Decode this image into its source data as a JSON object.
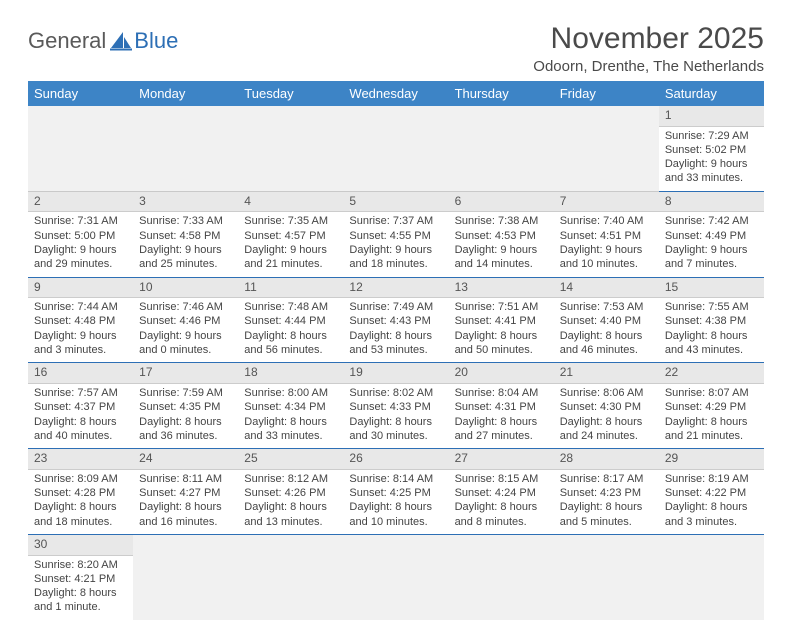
{
  "brand": {
    "part1": "General",
    "part2": "Blue"
  },
  "title": "November 2025",
  "location": "Odoorn, Drenthe, The Netherlands",
  "colors": {
    "header_bg": "#3d84c6",
    "header_text": "#ffffff",
    "rule": "#2d6fb5",
    "daynum_bg": "#e8e8e8",
    "empty_bg": "#f1f1f1",
    "text": "#444444"
  },
  "dayNames": [
    "Sunday",
    "Monday",
    "Tuesday",
    "Wednesday",
    "Thursday",
    "Friday",
    "Saturday"
  ],
  "weeks": [
    [
      null,
      null,
      null,
      null,
      null,
      null,
      {
        "n": "1",
        "sr": "7:29 AM",
        "ss": "5:02 PM",
        "dl": "9 hours and 33 minutes."
      }
    ],
    [
      {
        "n": "2",
        "sr": "7:31 AM",
        "ss": "5:00 PM",
        "dl": "9 hours and 29 minutes."
      },
      {
        "n": "3",
        "sr": "7:33 AM",
        "ss": "4:58 PM",
        "dl": "9 hours and 25 minutes."
      },
      {
        "n": "4",
        "sr": "7:35 AM",
        "ss": "4:57 PM",
        "dl": "9 hours and 21 minutes."
      },
      {
        "n": "5",
        "sr": "7:37 AM",
        "ss": "4:55 PM",
        "dl": "9 hours and 18 minutes."
      },
      {
        "n": "6",
        "sr": "7:38 AM",
        "ss": "4:53 PM",
        "dl": "9 hours and 14 minutes."
      },
      {
        "n": "7",
        "sr": "7:40 AM",
        "ss": "4:51 PM",
        "dl": "9 hours and 10 minutes."
      },
      {
        "n": "8",
        "sr": "7:42 AM",
        "ss": "4:49 PM",
        "dl": "9 hours and 7 minutes."
      }
    ],
    [
      {
        "n": "9",
        "sr": "7:44 AM",
        "ss": "4:48 PM",
        "dl": "9 hours and 3 minutes."
      },
      {
        "n": "10",
        "sr": "7:46 AM",
        "ss": "4:46 PM",
        "dl": "9 hours and 0 minutes."
      },
      {
        "n": "11",
        "sr": "7:48 AM",
        "ss": "4:44 PM",
        "dl": "8 hours and 56 minutes."
      },
      {
        "n": "12",
        "sr": "7:49 AM",
        "ss": "4:43 PM",
        "dl": "8 hours and 53 minutes."
      },
      {
        "n": "13",
        "sr": "7:51 AM",
        "ss": "4:41 PM",
        "dl": "8 hours and 50 minutes."
      },
      {
        "n": "14",
        "sr": "7:53 AM",
        "ss": "4:40 PM",
        "dl": "8 hours and 46 minutes."
      },
      {
        "n": "15",
        "sr": "7:55 AM",
        "ss": "4:38 PM",
        "dl": "8 hours and 43 minutes."
      }
    ],
    [
      {
        "n": "16",
        "sr": "7:57 AM",
        "ss": "4:37 PM",
        "dl": "8 hours and 40 minutes."
      },
      {
        "n": "17",
        "sr": "7:59 AM",
        "ss": "4:35 PM",
        "dl": "8 hours and 36 minutes."
      },
      {
        "n": "18",
        "sr": "8:00 AM",
        "ss": "4:34 PM",
        "dl": "8 hours and 33 minutes."
      },
      {
        "n": "19",
        "sr": "8:02 AM",
        "ss": "4:33 PM",
        "dl": "8 hours and 30 minutes."
      },
      {
        "n": "20",
        "sr": "8:04 AM",
        "ss": "4:31 PM",
        "dl": "8 hours and 27 minutes."
      },
      {
        "n": "21",
        "sr": "8:06 AM",
        "ss": "4:30 PM",
        "dl": "8 hours and 24 minutes."
      },
      {
        "n": "22",
        "sr": "8:07 AM",
        "ss": "4:29 PM",
        "dl": "8 hours and 21 minutes."
      }
    ],
    [
      {
        "n": "23",
        "sr": "8:09 AM",
        "ss": "4:28 PM",
        "dl": "8 hours and 18 minutes."
      },
      {
        "n": "24",
        "sr": "8:11 AM",
        "ss": "4:27 PM",
        "dl": "8 hours and 16 minutes."
      },
      {
        "n": "25",
        "sr": "8:12 AM",
        "ss": "4:26 PM",
        "dl": "8 hours and 13 minutes."
      },
      {
        "n": "26",
        "sr": "8:14 AM",
        "ss": "4:25 PM",
        "dl": "8 hours and 10 minutes."
      },
      {
        "n": "27",
        "sr": "8:15 AM",
        "ss": "4:24 PM",
        "dl": "8 hours and 8 minutes."
      },
      {
        "n": "28",
        "sr": "8:17 AM",
        "ss": "4:23 PM",
        "dl": "8 hours and 5 minutes."
      },
      {
        "n": "29",
        "sr": "8:19 AM",
        "ss": "4:22 PM",
        "dl": "8 hours and 3 minutes."
      }
    ],
    [
      {
        "n": "30",
        "sr": "8:20 AM",
        "ss": "4:21 PM",
        "dl": "8 hours and 1 minute."
      },
      null,
      null,
      null,
      null,
      null,
      null
    ]
  ],
  "labels": {
    "sunrise": "Sunrise: ",
    "sunset": "Sunset: ",
    "daylight": "Daylight: "
  }
}
